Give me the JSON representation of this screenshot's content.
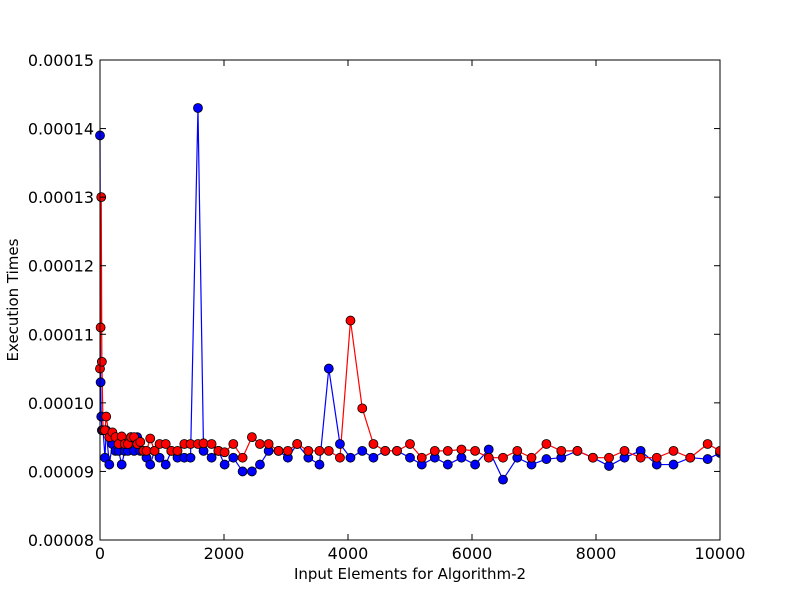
{
  "chart_data": {
    "type": "line",
    "title": "",
    "xlabel": "Input Elements for Algorithm-2",
    "ylabel": "Execution Times",
    "xlim": [
      0,
      10000
    ],
    "ylim": [
      8e-05,
      0.00015
    ],
    "grid": false,
    "legend": "none",
    "xticks": [
      0,
      2000,
      4000,
      6000,
      8000,
      10000
    ],
    "xtick_labels": [
      "0",
      "2000",
      "4000",
      "6000",
      "8000",
      "10000"
    ],
    "yticks": [
      8e-05,
      9e-05,
      0.0001,
      0.00011,
      0.00012,
      0.00013,
      0.00014,
      0.00015
    ],
    "ytick_labels": [
      "0.00008",
      "0.00009",
      "0.00010",
      "0.00011",
      "0.00012",
      "0.00013",
      "0.00014",
      "0.00015"
    ],
    "series": [
      {
        "color": "#0000ff",
        "points": [
          [
            0,
            0.000139
          ],
          [
            10,
            0.000103
          ],
          [
            20,
            9.8e-05
          ],
          [
            30,
            9.6e-05
          ],
          [
            50,
            9.6e-05
          ],
          [
            80,
            9.2e-05
          ],
          [
            100,
            9.6e-05
          ],
          [
            150,
            9.1e-05
          ],
          [
            200,
            9.4e-05
          ],
          [
            250,
            9.3e-05
          ],
          [
            300,
            9.3e-05
          ],
          [
            350,
            9.1e-05
          ],
          [
            400,
            9.3e-05
          ],
          [
            450,
            9.3e-05
          ],
          [
            500,
            9.5e-05
          ],
          [
            550,
            9.3e-05
          ],
          [
            600,
            9.5e-05
          ],
          [
            650,
            9.3e-05
          ],
          [
            700,
            9.3e-05
          ],
          [
            750,
            9.2e-05
          ],
          [
            810,
            9.1e-05
          ],
          [
            880,
            9.3e-05
          ],
          [
            960,
            9.2e-05
          ],
          [
            1060,
            9.1e-05
          ],
          [
            1150,
            9.3e-05
          ],
          [
            1250,
            9.2e-05
          ],
          [
            1360,
            9.2e-05
          ],
          [
            1460,
            9.2e-05
          ],
          [
            1580,
            0.000143
          ],
          [
            1670,
            9.3e-05
          ],
          [
            1800,
            9.2e-05
          ],
          [
            1910,
            9.3e-05
          ],
          [
            2010,
            9.1e-05
          ],
          [
            2150,
            9.2e-05
          ],
          [
            2300,
            9e-05
          ],
          [
            2450,
            9e-05
          ],
          [
            2580,
            9.1e-05
          ],
          [
            2720,
            9.3e-05
          ],
          [
            2880,
            9.3e-05
          ],
          [
            3030,
            9.2e-05
          ],
          [
            3180,
            9.4e-05
          ],
          [
            3360,
            9.2e-05
          ],
          [
            3540,
            9.1e-05
          ],
          [
            3690,
            0.000105
          ],
          [
            3870,
            9.4e-05
          ],
          [
            4040,
            9.2e-05
          ],
          [
            4230,
            9.3e-05
          ],
          [
            4410,
            9.2e-05
          ],
          [
            4600,
            9.3e-05
          ],
          [
            4790,
            9.3e-05
          ],
          [
            5000,
            9.2e-05
          ],
          [
            5190,
            9.1e-05
          ],
          [
            5400,
            9.2e-05
          ],
          [
            5610,
            9.1e-05
          ],
          [
            5830,
            9.2e-05
          ],
          [
            6050,
            9.1e-05
          ],
          [
            6270,
            9.32e-05
          ],
          [
            6500,
            8.88e-05
          ],
          [
            6730,
            9.2e-05
          ],
          [
            6960,
            9.1e-05
          ],
          [
            7200,
            9.18e-05
          ],
          [
            7440,
            9.2e-05
          ],
          [
            7700,
            9.3e-05
          ],
          [
            7950,
            9.2e-05
          ],
          [
            8210,
            9.08e-05
          ],
          [
            8460,
            9.2e-05
          ],
          [
            8720,
            9.3e-05
          ],
          [
            8980,
            9.1e-05
          ],
          [
            9250,
            9.1e-05
          ],
          [
            9520,
            9.2e-05
          ],
          [
            9800,
            9.18e-05
          ],
          [
            10000,
            9.27e-05
          ]
        ]
      },
      {
        "color": "#ff0000",
        "points": [
          [
            0,
            0.000105
          ],
          [
            10,
            0.000111
          ],
          [
            20,
            0.00013
          ],
          [
            30,
            0.000106
          ],
          [
            50,
            9.6e-05
          ],
          [
            80,
            9.6e-05
          ],
          [
            100,
            9.8e-05
          ],
          [
            150,
            9.5e-05
          ],
          [
            200,
            9.57e-05
          ],
          [
            250,
            9.5e-05
          ],
          [
            300,
            9.4e-05
          ],
          [
            350,
            9.51e-05
          ],
          [
            400,
            9.4e-05
          ],
          [
            450,
            9.4e-05
          ],
          [
            500,
            9.5e-05
          ],
          [
            550,
            9.5e-05
          ],
          [
            600,
            9.4e-05
          ],
          [
            650,
            9.43e-05
          ],
          [
            700,
            9.3e-05
          ],
          [
            750,
            9.3e-05
          ],
          [
            810,
            9.48e-05
          ],
          [
            880,
            9.3e-05
          ],
          [
            960,
            9.4e-05
          ],
          [
            1060,
            9.4e-05
          ],
          [
            1150,
            9.3e-05
          ],
          [
            1250,
            9.3e-05
          ],
          [
            1360,
            9.4e-05
          ],
          [
            1460,
            9.4e-05
          ],
          [
            1580,
            9.4e-05
          ],
          [
            1670,
            9.41e-05
          ],
          [
            1800,
            9.4e-05
          ],
          [
            1910,
            9.3e-05
          ],
          [
            2010,
            9.28e-05
          ],
          [
            2150,
            9.4e-05
          ],
          [
            2300,
            9.2e-05
          ],
          [
            2450,
            9.5e-05
          ],
          [
            2580,
            9.4e-05
          ],
          [
            2720,
            9.4e-05
          ],
          [
            2880,
            9.3e-05
          ],
          [
            3030,
            9.3e-05
          ],
          [
            3180,
            9.4e-05
          ],
          [
            3360,
            9.3e-05
          ],
          [
            3540,
            9.3e-05
          ],
          [
            3690,
            9.3e-05
          ],
          [
            3870,
            9.2e-05
          ],
          [
            4040,
            0.000112
          ],
          [
            4230,
            9.92e-05
          ],
          [
            4410,
            9.4e-05
          ],
          [
            4600,
            9.3e-05
          ],
          [
            4790,
            9.3e-05
          ],
          [
            5000,
            9.4e-05
          ],
          [
            5190,
            9.2e-05
          ],
          [
            5400,
            9.3e-05
          ],
          [
            5610,
            9.3e-05
          ],
          [
            5830,
            9.32e-05
          ],
          [
            6050,
            9.3e-05
          ],
          [
            6270,
            9.2e-05
          ],
          [
            6500,
            9.2e-05
          ],
          [
            6730,
            9.3e-05
          ],
          [
            6960,
            9.2e-05
          ],
          [
            7200,
            9.4e-05
          ],
          [
            7440,
            9.3e-05
          ],
          [
            7700,
            9.3e-05
          ],
          [
            7950,
            9.2e-05
          ],
          [
            8210,
            9.2e-05
          ],
          [
            8460,
            9.3e-05
          ],
          [
            8720,
            9.2e-05
          ],
          [
            8980,
            9.2e-05
          ],
          [
            9250,
            9.3e-05
          ],
          [
            9520,
            9.2e-05
          ],
          [
            9800,
            9.4e-05
          ],
          [
            10000,
            9.3e-05
          ]
        ]
      }
    ]
  }
}
